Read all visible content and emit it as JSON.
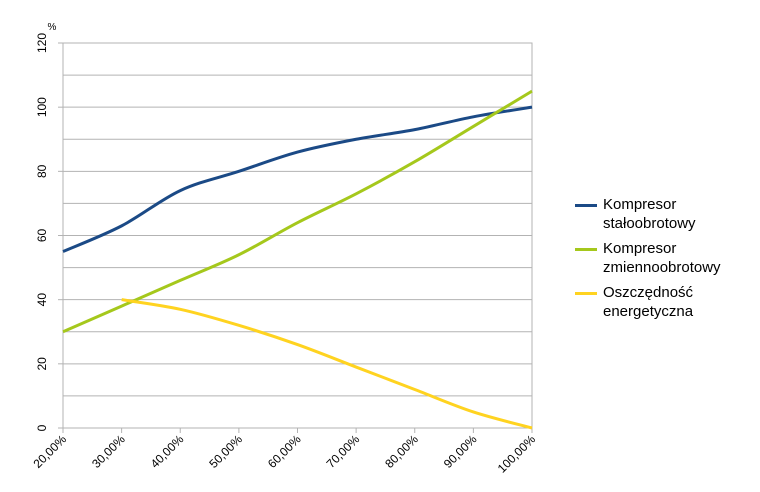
{
  "chart_data": {
    "type": "line",
    "y_label": "%",
    "categories": [
      "20,00%",
      "30,00%",
      "40,00%",
      "50,00%",
      "60,00%",
      "70,00%",
      "80,00%",
      "90,00%",
      "100,00%"
    ],
    "series": [
      {
        "name": "Kompresor stałoobrotowy",
        "color": "#1b4a86",
        "values": [
          55,
          63,
          74,
          80,
          86,
          90,
          93,
          97,
          100
        ]
      },
      {
        "name": "Kompresor zmiennoobrotowy",
        "color": "#a5c81c",
        "values": [
          30,
          38,
          46,
          54,
          64,
          73,
          83,
          94,
          105
        ]
      },
      {
        "name": "Oszczędność energetyczna",
        "color": "#ffd320",
        "values": [
          null,
          40,
          37,
          32,
          26,
          19,
          12,
          5,
          0
        ]
      }
    ],
    "ylim": [
      0,
      120
    ],
    "yticks": [
      0,
      20,
      40,
      60,
      80,
      100,
      120
    ],
    "grid": true,
    "legend": "right"
  }
}
